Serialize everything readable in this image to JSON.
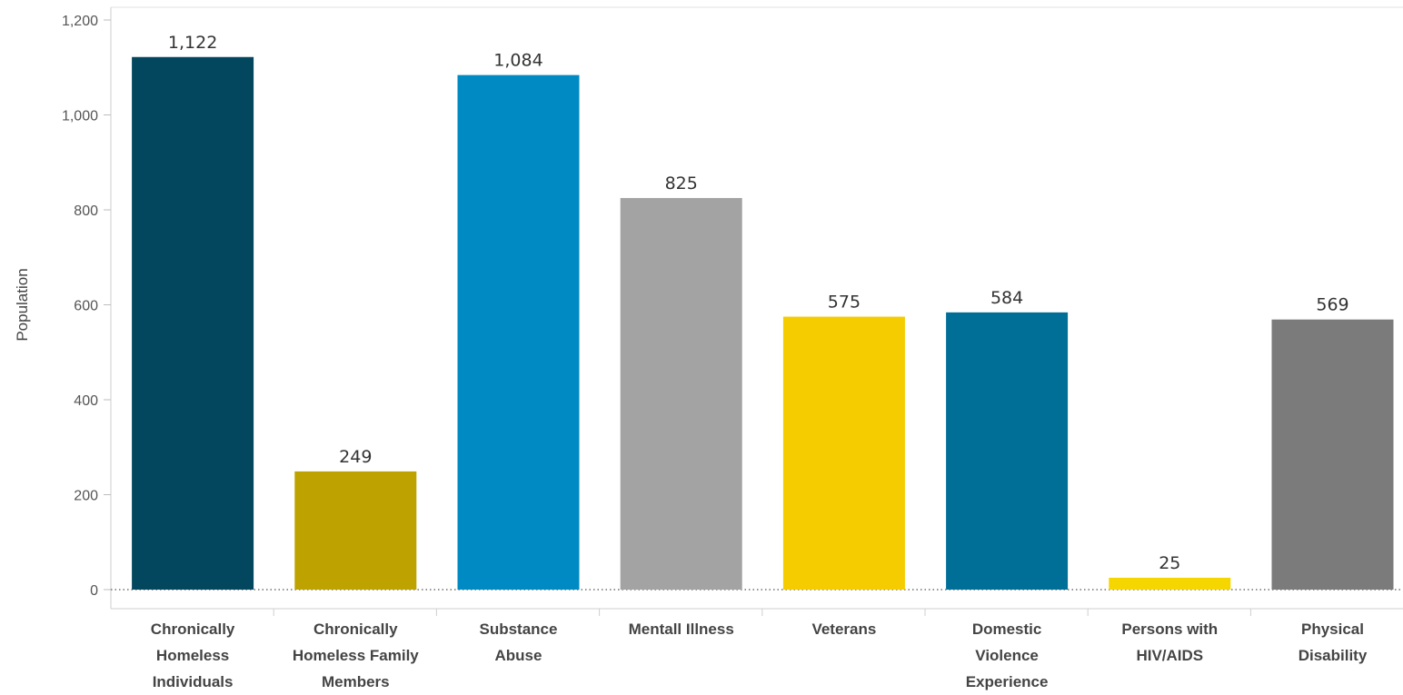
{
  "chart_data": {
    "type": "bar",
    "categories": [
      "Chronically Homeless Individuals",
      "Chronically Homeless Family Members",
      "Substance Abuse",
      "Mentall Illness",
      "Veterans",
      "Domestic Violence Experience",
      "Persons with HIV/AIDS",
      "Physical Disability"
    ],
    "category_lines": [
      [
        "Chronically",
        "Homeless",
        "Individuals"
      ],
      [
        "Chronically",
        "Homeless Family",
        "Members"
      ],
      [
        "Substance",
        "Abuse"
      ],
      [
        "Mentall Illness"
      ],
      [
        "Veterans"
      ],
      [
        "Domestic",
        "Violence",
        "Experience"
      ],
      [
        "Persons with",
        "HIV/AIDS"
      ],
      [
        "Physical",
        "Disability"
      ]
    ],
    "values": [
      1122,
      249,
      1084,
      825,
      575,
      584,
      25,
      569
    ],
    "value_labels": [
      "1,122",
      "249",
      "1,084",
      "825",
      "575",
      "584",
      "25",
      "569"
    ],
    "colors": [
      "#03475f",
      "#bda200",
      "#008ac4",
      "#a3a3a3",
      "#f5cc00",
      "#006f98",
      "#f5d600",
      "#7b7b7b"
    ],
    "title": "",
    "xlabel": "",
    "ylabel": "Population",
    "ylim": [
      0,
      1200
    ],
    "yticks": [
      0,
      200,
      400,
      600,
      800,
      1000,
      1200
    ],
    "ytick_labels": [
      "0",
      "200",
      "400",
      "600",
      "800",
      "1,000",
      "1,200"
    ],
    "grid": false
  }
}
